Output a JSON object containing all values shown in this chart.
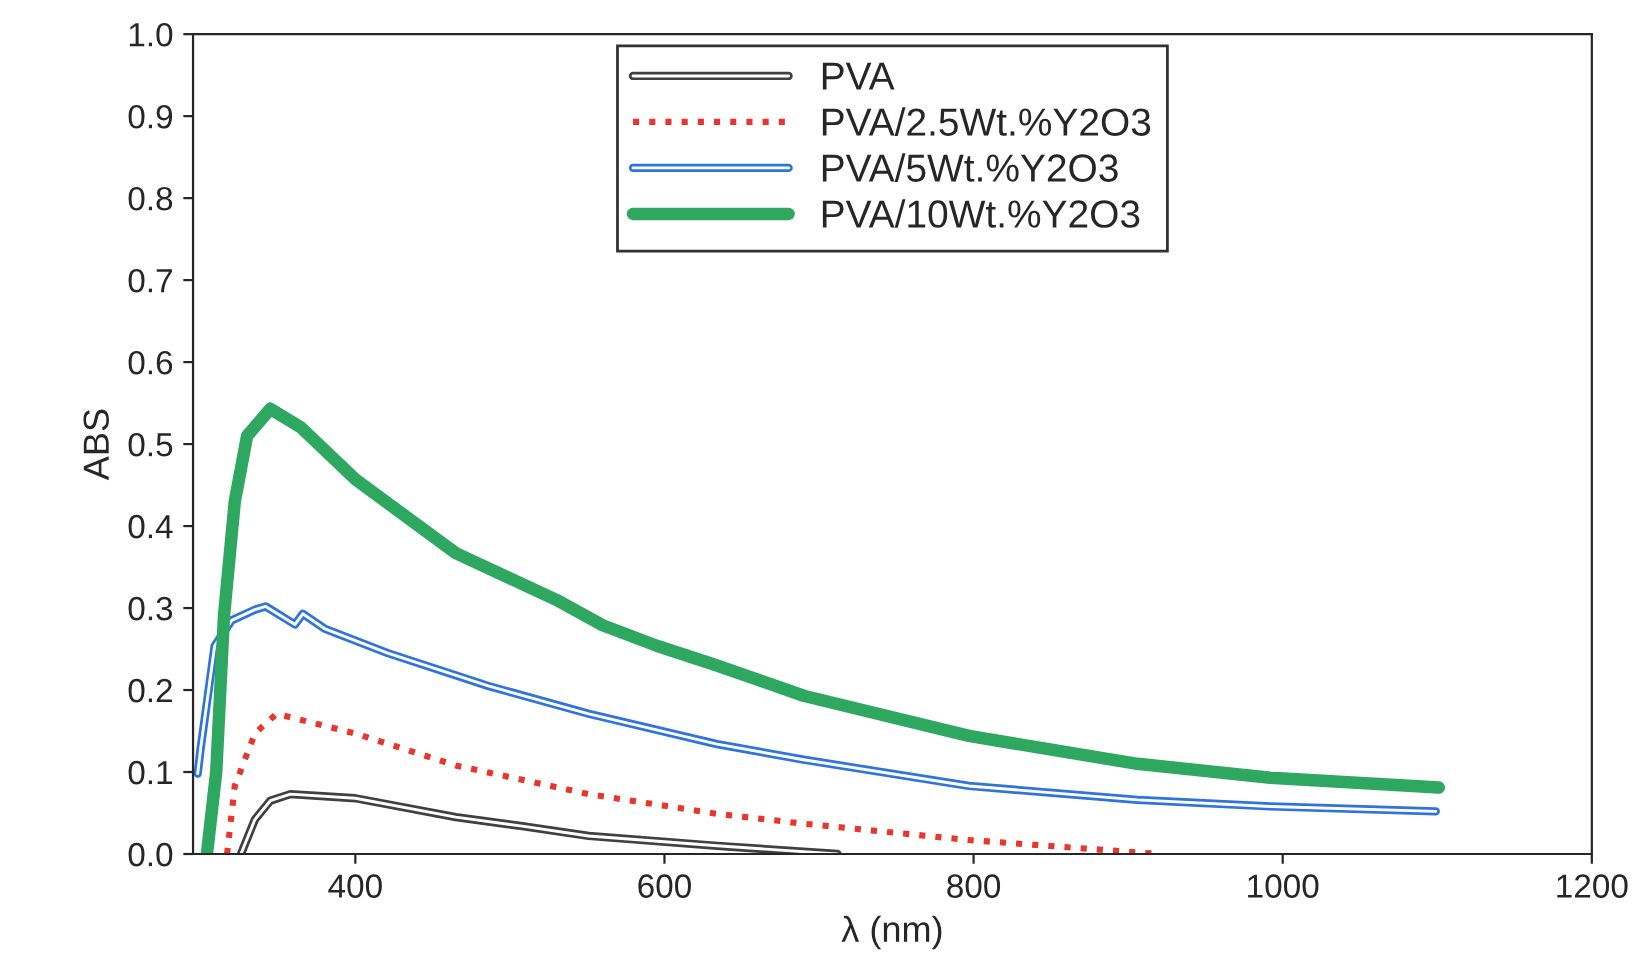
{
  "chart_data": {
    "type": "line",
    "xlabel": "λ (nm)",
    "ylabel": "ABS",
    "xlim": [
      295,
      1200
    ],
    "xticks": [
      400,
      600,
      800,
      1000,
      1200
    ],
    "ylim": [
      0,
      1.0
    ],
    "yticks": [
      {
        "value": 0,
        "label": "0.0"
      },
      {
        "value": 0.1,
        "label": "0.1"
      },
      {
        "value": 0.2,
        "label": "0.2"
      },
      {
        "value": 0.3,
        "label": "0.3"
      },
      {
        "value": 0.4,
        "label": "0.4"
      },
      {
        "value": 0.5,
        "label": "0.5"
      },
      {
        "value": 0.6,
        "label": "0.6"
      },
      {
        "value": 0.7,
        "label": "0.7"
      },
      {
        "value": 0.8,
        "label": "0.8"
      },
      {
        "value": 0.9,
        "label": "0.9"
      },
      {
        "value": 1.0,
        "label": "1.0"
      }
    ],
    "grid": false,
    "legend": "top",
    "marker": "none",
    "series": [
      {
        "name": "PVA",
        "color": "#404040",
        "line_style": "solid",
        "x": [
          326,
          335,
          345,
          358,
          400,
          465,
          508,
          551,
          634,
          712
        ],
        "values": [
          0,
          0.042,
          0.065,
          0.073,
          0.068,
          0.045,
          0.034,
          0.022,
          0.01,
          0
        ]
      },
      {
        "name": "PVA/2.5Wt.%Y2O3",
        "color": "#e8362e",
        "line_style": "dotted",
        "x": [
          317,
          322,
          335,
          349,
          400,
          465,
          551,
          634,
          690,
          797,
          906,
          920
        ],
        "values": [
          0,
          0.083,
          0.147,
          0.171,
          0.147,
          0.108,
          0.073,
          0.049,
          0.037,
          0.017,
          0.002,
          0
        ]
      },
      {
        "name": "PVA/5Wt.%Y2O3",
        "color": "#2e74dc",
        "line_style": "solid",
        "x": [
          298,
          300,
          309,
          320,
          335,
          342,
          361,
          366,
          380,
          421,
          486,
          551,
          634,
          690,
          797,
          906,
          992,
          1099
        ],
        "values": [
          0.098,
          0.13,
          0.254,
          0.285,
          0.298,
          0.302,
          0.28,
          0.293,
          0.275,
          0.245,
          0.205,
          0.171,
          0.134,
          0.115,
          0.083,
          0.066,
          0.058,
          0.052
        ]
      },
      {
        "name": "PVA/10Wt.%Y2O3",
        "color": "#2ea860",
        "line_style": "solid",
        "x": [
          304,
          310,
          315,
          322,
          330,
          345,
          365,
          400,
          465,
          530,
          560,
          595,
          634,
          690,
          797,
          906,
          992,
          1101
        ],
        "values": [
          0,
          0.1,
          0.29,
          0.43,
          0.51,
          0.543,
          0.52,
          0.457,
          0.367,
          0.31,
          0.279,
          0.254,
          0.23,
          0.193,
          0.144,
          0.11,
          0.093,
          0.081
        ]
      }
    ]
  }
}
